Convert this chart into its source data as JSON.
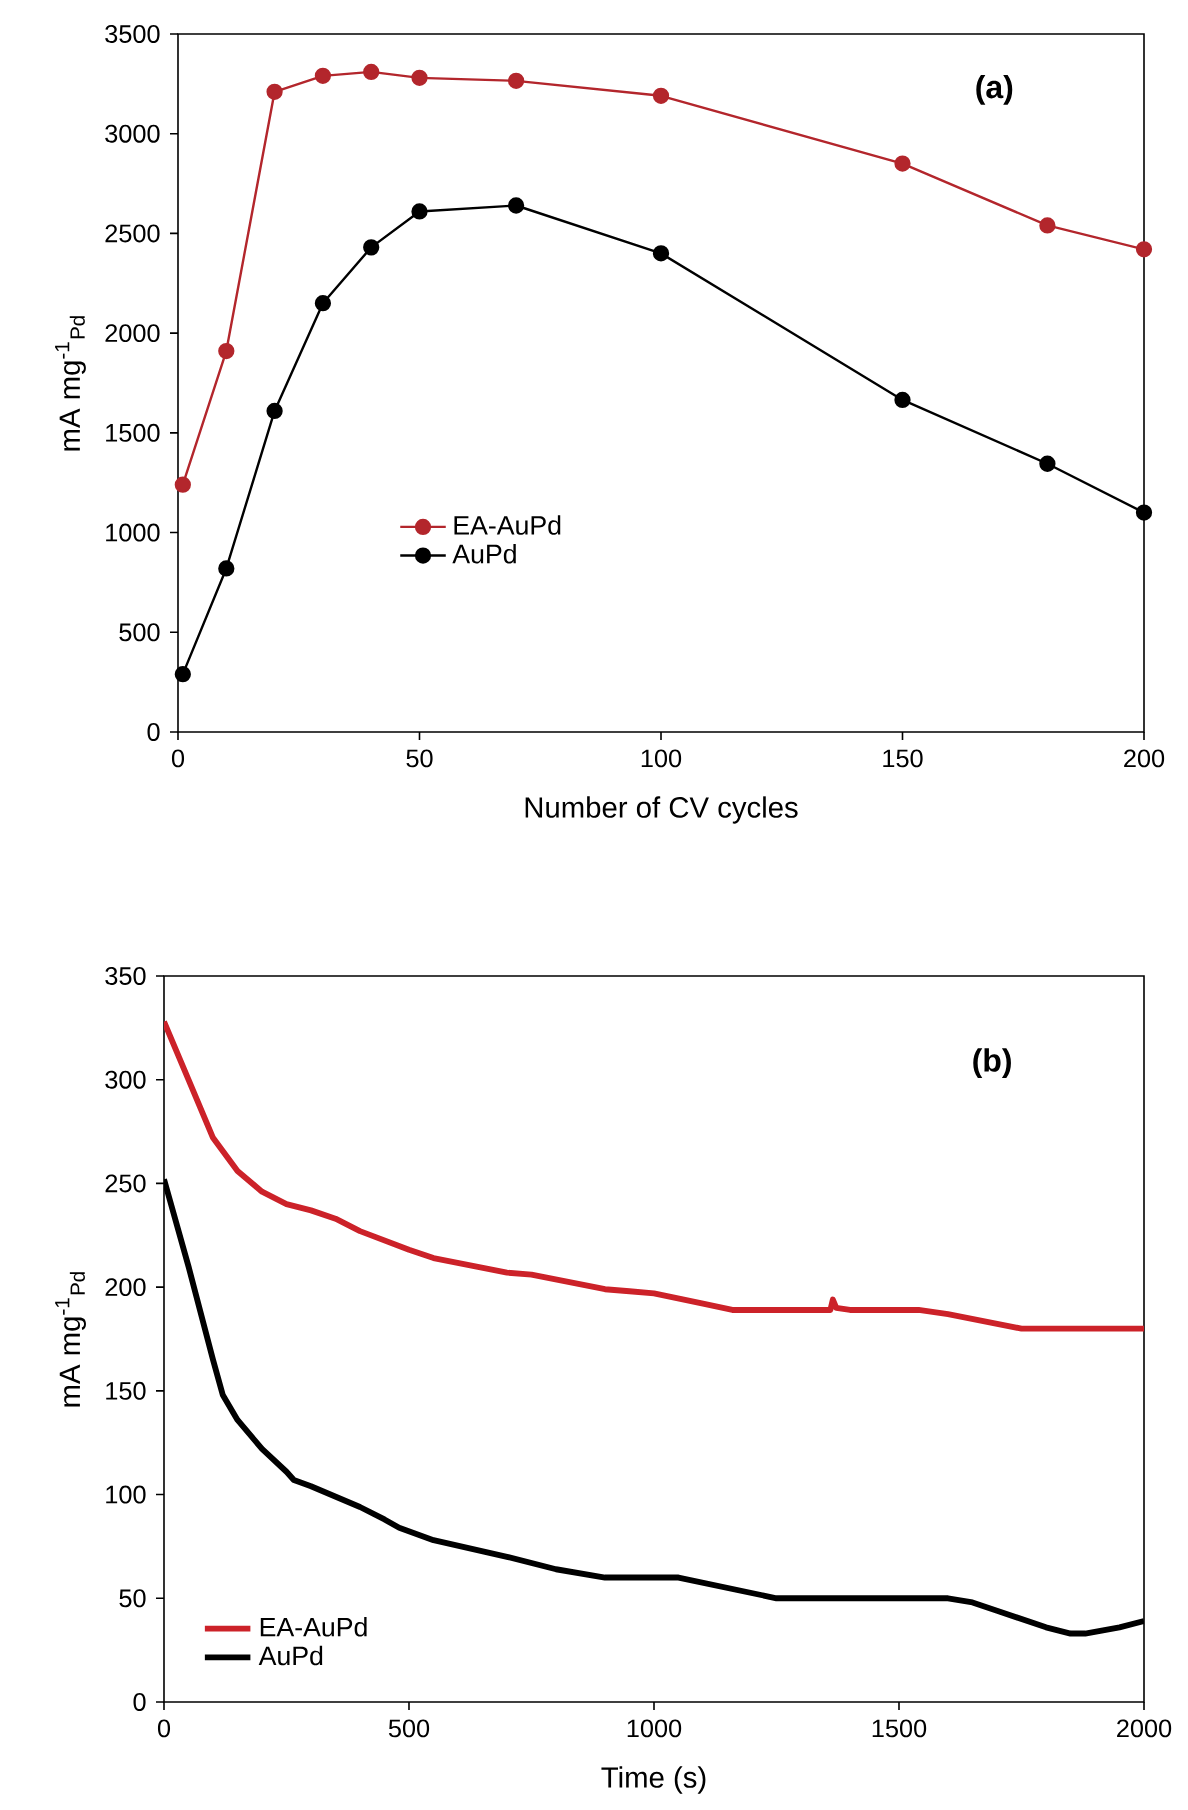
{
  "chart_data": [
    {
      "type": "line",
      "xlabel": "Number of CV cycles",
      "ylabel": "mA mg$^{-1}$$_{Pd}$",
      "annotations": [
        "(a)"
      ],
      "x": [
        1,
        10,
        20,
        30,
        40,
        50,
        70,
        100,
        150,
        180,
        200
      ],
      "series": [
        {
          "name": "EA-AuPd",
          "color": "#b3262c",
          "values": [
            1240,
            1910,
            3210,
            3290,
            3310,
            3280,
            3265,
            3190,
            2850,
            2540,
            2420
          ]
        },
        {
          "name": "AuPd",
          "color": "#000000",
          "values": [
            290,
            820,
            1610,
            2150,
            2430,
            2610,
            2640,
            2400,
            1665,
            1345,
            1100
          ]
        }
      ],
      "xlim": [
        0,
        200
      ],
      "xticks": [
        0,
        50,
        100,
        150,
        200
      ],
      "ylim": [
        0,
        3500
      ],
      "yticks": [
        0,
        500,
        1000,
        1500,
        2000,
        2500,
        3000,
        3500
      ],
      "grid": false,
      "legend": "bottom left",
      "marker": "circle",
      "line_style": "solid"
    },
    {
      "type": "line",
      "xlabel": "Time (s)",
      "ylabel": "mA mg$^{-1}$$_{Pd}$",
      "annotations": [
        "(b)"
      ],
      "series": [
        {
          "name": "EA-AuPd",
          "color": "#cc2229",
          "x": [
            0,
            50,
            100,
            150,
            200,
            250,
            300,
            350,
            400,
            500,
            550,
            700,
            750,
            900,
            950,
            1000,
            1100,
            1160,
            1360,
            1365,
            1372,
            1400,
            1540,
            1600,
            1750,
            2000
          ],
          "values": [
            328,
            300,
            272,
            256,
            246,
            240,
            237,
            233,
            227,
            218,
            214,
            207,
            206,
            199,
            198,
            197,
            192,
            189,
            189,
            194,
            190,
            189,
            189,
            187,
            180,
            180
          ]
        },
        {
          "name": "AuPd",
          "color": "#000000",
          "x": [
            0,
            50,
            100,
            120,
            150,
            200,
            250,
            265,
            300,
            350,
            400,
            450,
            480,
            550,
            700,
            800,
            900,
            1050,
            1250,
            1600,
            1650,
            1700,
            1800,
            1850,
            1880,
            1950,
            2000
          ],
          "values": [
            252,
            210,
            165,
            148,
            136,
            122,
            111,
            107,
            104,
            99,
            94,
            88,
            84,
            78,
            70,
            64,
            60,
            60,
            50,
            50,
            48,
            44,
            36,
            33,
            33,
            36,
            39
          ]
        }
      ],
      "xlim": [
        0,
        2000
      ],
      "xticks": [
        0,
        500,
        1000,
        1500,
        2000
      ],
      "ylim": [
        0,
        350
      ],
      "yticks": [
        0,
        50,
        100,
        150,
        200,
        250,
        300,
        350
      ],
      "grid": false,
      "legend": "bottom left",
      "marker": "none",
      "line_style": "solid"
    }
  ]
}
